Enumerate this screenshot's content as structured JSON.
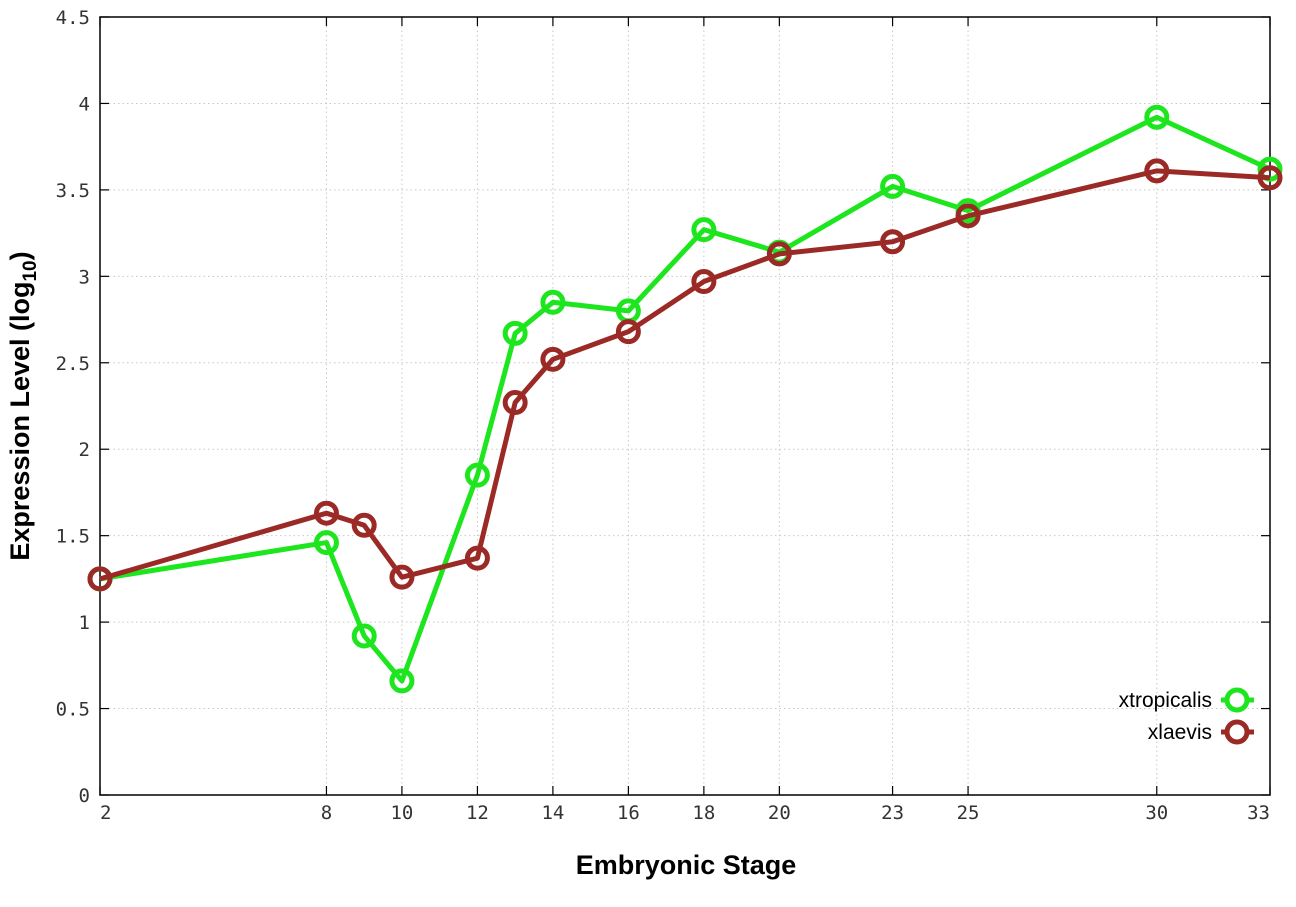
{
  "chart_data": {
    "type": "line",
    "xlabel": "Embryonic Stage",
    "ylabel": "Expression Level (log",
    "ylabel_subscript": "10",
    "ylabel_suffix": ")",
    "x_ticks": [
      2,
      8,
      10,
      12,
      14,
      16,
      18,
      20,
      23,
      25,
      30,
      33
    ],
    "y_ticks": [
      "0",
      "0.5",
      "1",
      "1.5",
      "2",
      "2.5",
      "3",
      "3.5",
      "4",
      "4.5"
    ],
    "xlim": [
      2,
      33
    ],
    "ylim": [
      0,
      4.5
    ],
    "grid": true,
    "legend_position": "bottom-right",
    "x": [
      2,
      8,
      9,
      10,
      12,
      13,
      14,
      16,
      18,
      20,
      23,
      25,
      30,
      33
    ],
    "series": [
      {
        "name": "xtropicalis",
        "color": "#1ee61e",
        "values": [
          1.25,
          1.46,
          0.92,
          0.66,
          1.85,
          2.67,
          2.85,
          2.8,
          3.27,
          3.14,
          3.52,
          3.38,
          3.92,
          3.62
        ]
      },
      {
        "name": "xlaevis",
        "color": "#9b2a27",
        "values": [
          1.25,
          1.63,
          1.56,
          1.26,
          1.37,
          2.27,
          2.52,
          2.68,
          2.97,
          3.13,
          3.2,
          3.35,
          3.61,
          3.57
        ]
      }
    ]
  }
}
